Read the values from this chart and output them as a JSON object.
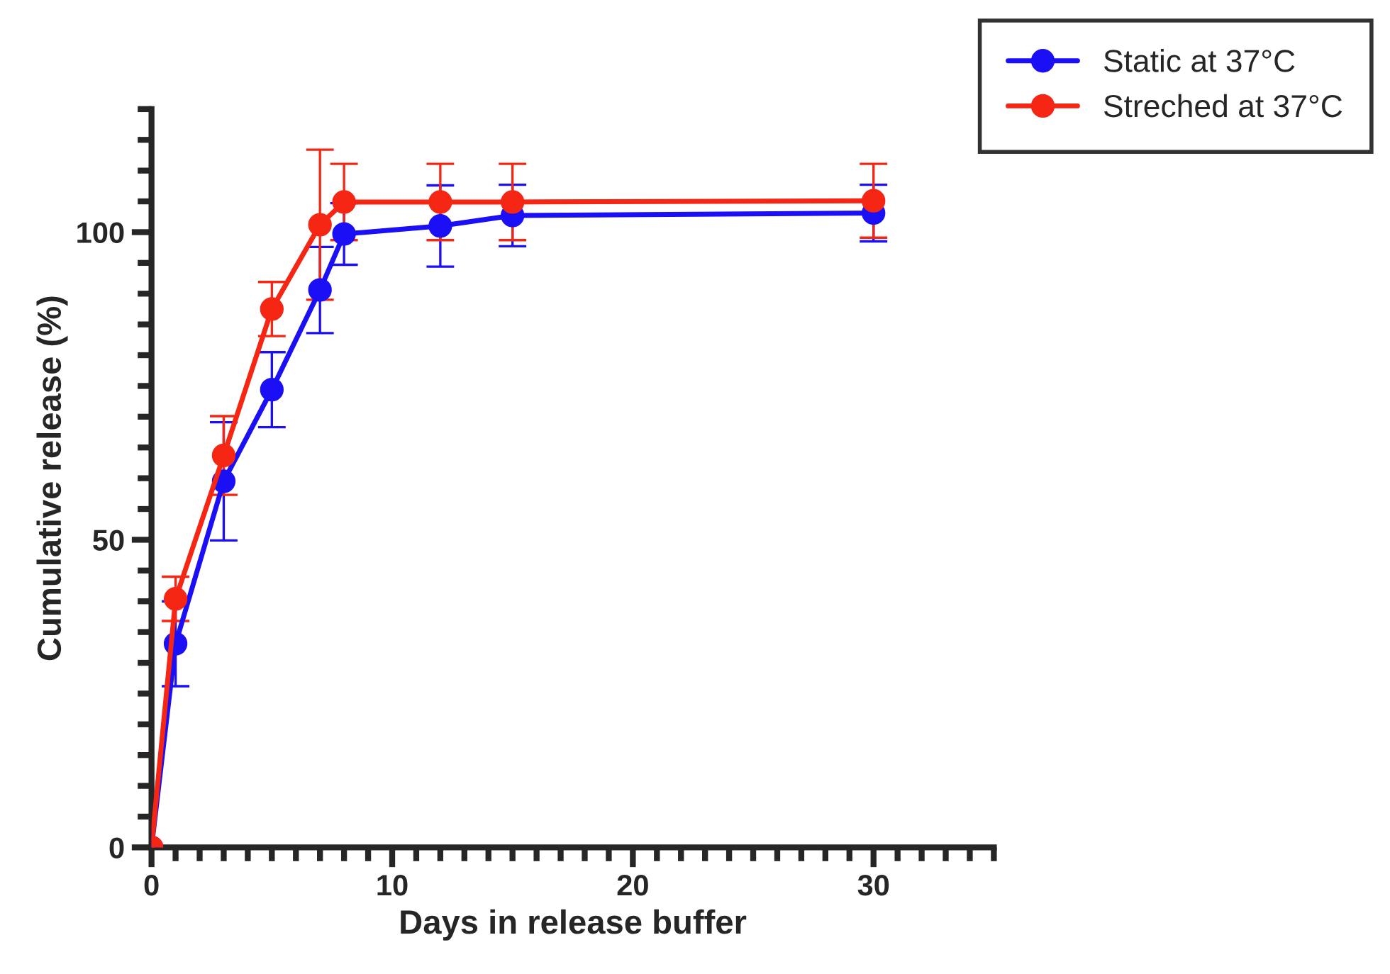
{
  "chart_data": {
    "type": "line",
    "xlabel": "Days in release buffer",
    "ylabel": "Cumulative release (%)",
    "x": [
      0,
      1,
      3,
      5,
      7,
      8,
      12,
      15,
      30
    ],
    "series": [
      {
        "name": "Static at 37°C",
        "color": "#1a0ff5",
        "values": [
          0,
          33.1,
          59.5,
          74.4,
          90.6,
          99.7,
          101.0,
          102.7,
          103.1
        ],
        "errors": [
          null,
          6.9,
          9.6,
          6.1,
          7.0,
          5.0,
          6.6,
          5.0,
          4.6
        ]
      },
      {
        "name": "Streched at 37°C",
        "color": "#f52614",
        "values": [
          0,
          40.4,
          63.7,
          87.5,
          101.2,
          104.9,
          104.9,
          104.9,
          105.1
        ],
        "errors": [
          null,
          3.6,
          6.4,
          4.4,
          12.2,
          6.2,
          6.2,
          6.2,
          6.0
        ]
      }
    ],
    "xlim": [
      0,
      35
    ],
    "xticks": [
      0,
      10,
      20,
      30
    ],
    "ylim": [
      0,
      120
    ],
    "yticks": [
      0,
      50,
      100
    ],
    "grid": false,
    "legend": "top right",
    "marker": "circle",
    "line_style": "solid"
  }
}
